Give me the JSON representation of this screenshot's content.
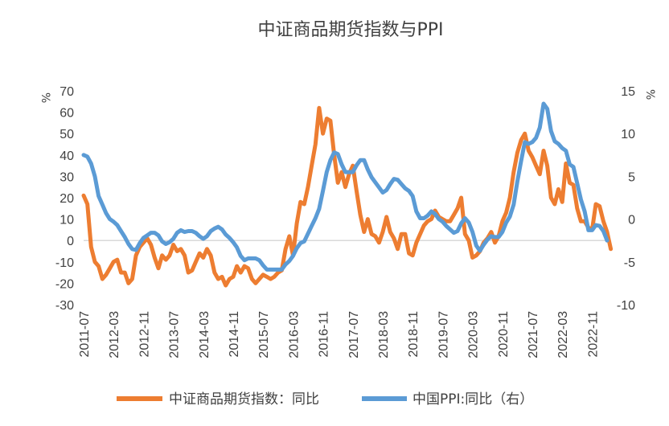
{
  "chart_data": {
    "type": "line",
    "title": "中证商品期货指数与PPI",
    "y_unit_left": "%",
    "y_unit_right": "%",
    "ylim_left": [
      -30,
      70
    ],
    "yticks_left": [
      -30,
      -20,
      -10,
      0,
      10,
      20,
      30,
      40,
      50,
      60,
      70
    ],
    "ylim_right": [
      -10,
      15
    ],
    "yticks_right": [
      -10,
      -5,
      0,
      5,
      10,
      15
    ],
    "xlim": [
      "2011-07",
      "2023-03"
    ],
    "x_ticks": [
      "2011-07",
      "2012-03",
      "2012-11",
      "2013-07",
      "2014-03",
      "2014-11",
      "2015-07",
      "2016-03",
      "2016-11",
      "2017-07",
      "2018-03",
      "2018-11",
      "2019-07",
      "2020-03",
      "2020-11",
      "2021-07",
      "2022-03",
      "2022-11"
    ],
    "grid": false,
    "legend": "bottom",
    "series": [
      {
        "name": "中证商品期货指数：同比",
        "axis": "left",
        "color": "#ED7D31",
        "points": [
          [
            "2011-07",
            21
          ],
          [
            "2011-08",
            17
          ],
          [
            "2011-09",
            -3
          ],
          [
            "2011-10",
            -10
          ],
          [
            "2011-11",
            -12
          ],
          [
            "2011-12",
            -18
          ],
          [
            "2012-01",
            -16
          ],
          [
            "2012-02",
            -13
          ],
          [
            "2012-03",
            -10
          ],
          [
            "2012-04",
            -9
          ],
          [
            "2012-05",
            -15
          ],
          [
            "2012-06",
            -15
          ],
          [
            "2012-07",
            -20
          ],
          [
            "2012-08",
            -18
          ],
          [
            "2012-09",
            -7
          ],
          [
            "2012-10",
            -3
          ],
          [
            "2012-11",
            -1
          ],
          [
            "2012-12",
            1
          ],
          [
            "2013-01",
            -2
          ],
          [
            "2013-02",
            -8
          ],
          [
            "2013-03",
            -13
          ],
          [
            "2013-04",
            -7
          ],
          [
            "2013-05",
            -9
          ],
          [
            "2013-06",
            -7
          ],
          [
            "2013-07",
            -2
          ],
          [
            "2013-08",
            -5
          ],
          [
            "2013-09",
            -4
          ],
          [
            "2013-10",
            -7
          ],
          [
            "2013-11",
            -15
          ],
          [
            "2013-12",
            -14
          ],
          [
            "2014-01",
            -10
          ],
          [
            "2014-02",
            -6
          ],
          [
            "2014-03",
            -8
          ],
          [
            "2014-04",
            -4
          ],
          [
            "2014-05",
            -7
          ],
          [
            "2014-06",
            -15
          ],
          [
            "2014-07",
            -18
          ],
          [
            "2014-08",
            -17
          ],
          [
            "2014-09",
            -21
          ],
          [
            "2014-10",
            -18
          ],
          [
            "2014-11",
            -17
          ],
          [
            "2014-12",
            -12
          ],
          [
            "2015-01",
            -15
          ],
          [
            "2015-02",
            -12
          ],
          [
            "2015-03",
            -13
          ],
          [
            "2015-04",
            -18
          ],
          [
            "2015-05",
            -20
          ],
          [
            "2015-06",
            -18
          ],
          [
            "2015-07",
            -16
          ],
          [
            "2015-08",
            -17
          ],
          [
            "2015-09",
            -18
          ],
          [
            "2015-10",
            -17
          ],
          [
            "2015-11",
            -15
          ],
          [
            "2015-12",
            -14
          ],
          [
            "2016-01",
            -4
          ],
          [
            "2016-02",
            2
          ],
          [
            "2016-03",
            -7
          ],
          [
            "2016-04",
            8
          ],
          [
            "2016-05",
            18
          ],
          [
            "2016-06",
            17
          ],
          [
            "2016-07",
            25
          ],
          [
            "2016-08",
            35
          ],
          [
            "2016-09",
            45
          ],
          [
            "2016-10",
            62
          ],
          [
            "2016-11",
            50
          ],
          [
            "2016-12",
            57
          ],
          [
            "2017-01",
            56
          ],
          [
            "2017-02",
            40
          ],
          [
            "2017-03",
            27
          ],
          [
            "2017-04",
            32
          ],
          [
            "2017-05",
            25
          ],
          [
            "2017-06",
            31
          ],
          [
            "2017-07",
            35
          ],
          [
            "2017-08",
            23
          ],
          [
            "2017-09",
            12
          ],
          [
            "2017-10",
            4
          ],
          [
            "2017-11",
            10
          ],
          [
            "2017-12",
            3
          ],
          [
            "2018-01",
            2
          ],
          [
            "2018-02",
            -1
          ],
          [
            "2018-03",
            4
          ],
          [
            "2018-04",
            11
          ],
          [
            "2018-05",
            4
          ],
          [
            "2018-06",
            1
          ],
          [
            "2018-07",
            -4
          ],
          [
            "2018-08",
            3
          ],
          [
            "2018-09",
            3
          ],
          [
            "2018-10",
            -6
          ],
          [
            "2018-11",
            -7
          ],
          [
            "2018-12",
            -1
          ],
          [
            "2019-01",
            3
          ],
          [
            "2019-02",
            7
          ],
          [
            "2019-03",
            9
          ],
          [
            "2019-04",
            10
          ],
          [
            "2019-05",
            14
          ],
          [
            "2019-06",
            11
          ],
          [
            "2019-07",
            10
          ],
          [
            "2019-08",
            9
          ],
          [
            "2019-09",
            9
          ],
          [
            "2019-10",
            12
          ],
          [
            "2019-11",
            15
          ],
          [
            "2019-12",
            20
          ],
          [
            "2020-01",
            3
          ],
          [
            "2020-02",
            0
          ],
          [
            "2020-03",
            -8
          ],
          [
            "2020-04",
            -7
          ],
          [
            "2020-05",
            -5
          ],
          [
            "2020-06",
            -1
          ],
          [
            "2020-07",
            1
          ],
          [
            "2020-08",
            4
          ],
          [
            "2020-09",
            -1
          ],
          [
            "2020-10",
            2
          ],
          [
            "2020-11",
            9
          ],
          [
            "2020-12",
            13
          ],
          [
            "2021-01",
            20
          ],
          [
            "2021-02",
            32
          ],
          [
            "2021-03",
            41
          ],
          [
            "2021-04",
            47
          ],
          [
            "2021-05",
            50
          ],
          [
            "2021-06",
            42
          ],
          [
            "2021-07",
            39
          ],
          [
            "2021-08",
            35
          ],
          [
            "2021-09",
            31
          ],
          [
            "2021-10",
            42
          ],
          [
            "2021-11",
            35
          ],
          [
            "2021-12",
            20
          ],
          [
            "2022-01",
            17
          ],
          [
            "2022-02",
            24
          ],
          [
            "2022-03",
            18
          ],
          [
            "2022-04",
            36
          ],
          [
            "2022-05",
            27
          ],
          [
            "2022-06",
            26
          ],
          [
            "2022-07",
            15
          ],
          [
            "2022-08",
            9
          ],
          [
            "2022-09",
            9
          ],
          [
            "2022-10",
            6
          ],
          [
            "2022-11",
            5
          ],
          [
            "2022-12",
            17
          ],
          [
            "2023-01",
            16
          ],
          [
            "2023-02",
            9
          ],
          [
            "2023-03",
            4
          ],
          [
            "2023-04",
            -4
          ]
        ]
      },
      {
        "name": "中国PPI:同比（右）",
        "axis": "right",
        "color": "#5B9BD5",
        "points": [
          [
            "2011-07",
            7.5
          ],
          [
            "2011-08",
            7.3
          ],
          [
            "2011-09",
            6.5
          ],
          [
            "2011-10",
            5.0
          ],
          [
            "2011-11",
            2.7
          ],
          [
            "2011-12",
            1.7
          ],
          [
            "2012-01",
            0.7
          ],
          [
            "2012-02",
            0.0
          ],
          [
            "2012-03",
            -0.3
          ],
          [
            "2012-04",
            -0.7
          ],
          [
            "2012-05",
            -1.4
          ],
          [
            "2012-06",
            -2.1
          ],
          [
            "2012-07",
            -2.9
          ],
          [
            "2012-08",
            -3.5
          ],
          [
            "2012-09",
            -3.6
          ],
          [
            "2012-10",
            -2.8
          ],
          [
            "2012-11",
            -2.2
          ],
          [
            "2012-12",
            -1.9
          ],
          [
            "2013-01",
            -1.6
          ],
          [
            "2013-02",
            -1.6
          ],
          [
            "2013-03",
            -1.9
          ],
          [
            "2013-04",
            -2.6
          ],
          [
            "2013-05",
            -2.9
          ],
          [
            "2013-06",
            -2.7
          ],
          [
            "2013-07",
            -2.3
          ],
          [
            "2013-08",
            -1.6
          ],
          [
            "2013-09",
            -1.3
          ],
          [
            "2013-10",
            -1.5
          ],
          [
            "2013-11",
            -1.4
          ],
          [
            "2013-12",
            -1.4
          ],
          [
            "2014-01",
            -1.6
          ],
          [
            "2014-02",
            -2.0
          ],
          [
            "2014-03",
            -2.3
          ],
          [
            "2014-04",
            -2.0
          ],
          [
            "2014-05",
            -1.4
          ],
          [
            "2014-06",
            -1.1
          ],
          [
            "2014-07",
            -0.9
          ],
          [
            "2014-08",
            -1.2
          ],
          [
            "2014-09",
            -1.8
          ],
          [
            "2014-10",
            -2.2
          ],
          [
            "2014-11",
            -2.7
          ],
          [
            "2014-12",
            -3.3
          ],
          [
            "2015-01",
            -4.3
          ],
          [
            "2015-02",
            -4.8
          ],
          [
            "2015-03",
            -4.6
          ],
          [
            "2015-04",
            -4.6
          ],
          [
            "2015-05",
            -4.6
          ],
          [
            "2015-06",
            -4.8
          ],
          [
            "2015-07",
            -5.4
          ],
          [
            "2015-08",
            -5.9
          ],
          [
            "2015-09",
            -5.9
          ],
          [
            "2015-10",
            -5.9
          ],
          [
            "2015-11",
            -5.9
          ],
          [
            "2015-12",
            -5.9
          ],
          [
            "2016-01",
            -5.3
          ],
          [
            "2016-02",
            -4.9
          ],
          [
            "2016-03",
            -4.3
          ],
          [
            "2016-04",
            -3.4
          ],
          [
            "2016-05",
            -2.8
          ],
          [
            "2016-06",
            -2.6
          ],
          [
            "2016-07",
            -1.7
          ],
          [
            "2016-08",
            -0.8
          ],
          [
            "2016-09",
            0.1
          ],
          [
            "2016-10",
            1.2
          ],
          [
            "2016-11",
            3.3
          ],
          [
            "2016-12",
            5.5
          ],
          [
            "2017-01",
            6.9
          ],
          [
            "2017-02",
            7.8
          ],
          [
            "2017-03",
            7.6
          ],
          [
            "2017-04",
            6.4
          ],
          [
            "2017-05",
            5.5
          ],
          [
            "2017-06",
            5.5
          ],
          [
            "2017-07",
            5.5
          ],
          [
            "2017-08",
            6.3
          ],
          [
            "2017-09",
            6.9
          ],
          [
            "2017-10",
            6.9
          ],
          [
            "2017-11",
            5.8
          ],
          [
            "2017-12",
            4.9
          ],
          [
            "2018-01",
            4.3
          ],
          [
            "2018-02",
            3.7
          ],
          [
            "2018-03",
            3.1
          ],
          [
            "2018-04",
            3.4
          ],
          [
            "2018-05",
            4.1
          ],
          [
            "2018-06",
            4.7
          ],
          [
            "2018-07",
            4.6
          ],
          [
            "2018-08",
            4.1
          ],
          [
            "2018-09",
            3.6
          ],
          [
            "2018-10",
            3.3
          ],
          [
            "2018-11",
            2.7
          ],
          [
            "2018-12",
            0.9
          ],
          [
            "2019-01",
            0.1
          ],
          [
            "2019-02",
            0.1
          ],
          [
            "2019-03",
            0.4
          ],
          [
            "2019-04",
            0.9
          ],
          [
            "2019-05",
            0.6
          ],
          [
            "2019-06",
            0.0
          ],
          [
            "2019-07",
            -0.3
          ],
          [
            "2019-08",
            -0.8
          ],
          [
            "2019-09",
            -1.2
          ],
          [
            "2019-10",
            -1.6
          ],
          [
            "2019-11",
            -1.4
          ],
          [
            "2019-12",
            -0.5
          ],
          [
            "2020-01",
            0.1
          ],
          [
            "2020-02",
            -0.4
          ],
          [
            "2020-03",
            -1.5
          ],
          [
            "2020-04",
            -3.1
          ],
          [
            "2020-05",
            -3.7
          ],
          [
            "2020-06",
            -3.0
          ],
          [
            "2020-07",
            -2.4
          ],
          [
            "2020-08",
            -2.0
          ],
          [
            "2020-09",
            -2.1
          ],
          [
            "2020-10",
            -2.1
          ],
          [
            "2020-11",
            -1.5
          ],
          [
            "2020-12",
            -0.4
          ],
          [
            "2021-01",
            0.3
          ],
          [
            "2021-02",
            1.7
          ],
          [
            "2021-03",
            4.4
          ],
          [
            "2021-04",
            6.8
          ],
          [
            "2021-05",
            9.0
          ],
          [
            "2021-06",
            8.8
          ],
          [
            "2021-07",
            9.0
          ],
          [
            "2021-08",
            9.5
          ],
          [
            "2021-09",
            10.7
          ],
          [
            "2021-10",
            13.5
          ],
          [
            "2021-11",
            12.9
          ],
          [
            "2021-12",
            10.3
          ],
          [
            "2022-01",
            9.1
          ],
          [
            "2022-02",
            8.8
          ],
          [
            "2022-03",
            8.3
          ],
          [
            "2022-04",
            8.0
          ],
          [
            "2022-05",
            6.4
          ],
          [
            "2022-06",
            6.1
          ],
          [
            "2022-07",
            4.2
          ],
          [
            "2022-08",
            2.3
          ],
          [
            "2022-09",
            0.9
          ],
          [
            "2022-10",
            -1.3
          ],
          [
            "2022-11",
            -1.3
          ],
          [
            "2022-12",
            -0.7
          ],
          [
            "2023-01",
            -0.8
          ],
          [
            "2023-02",
            -1.4
          ],
          [
            "2023-03",
            -2.5
          ]
        ]
      }
    ]
  }
}
